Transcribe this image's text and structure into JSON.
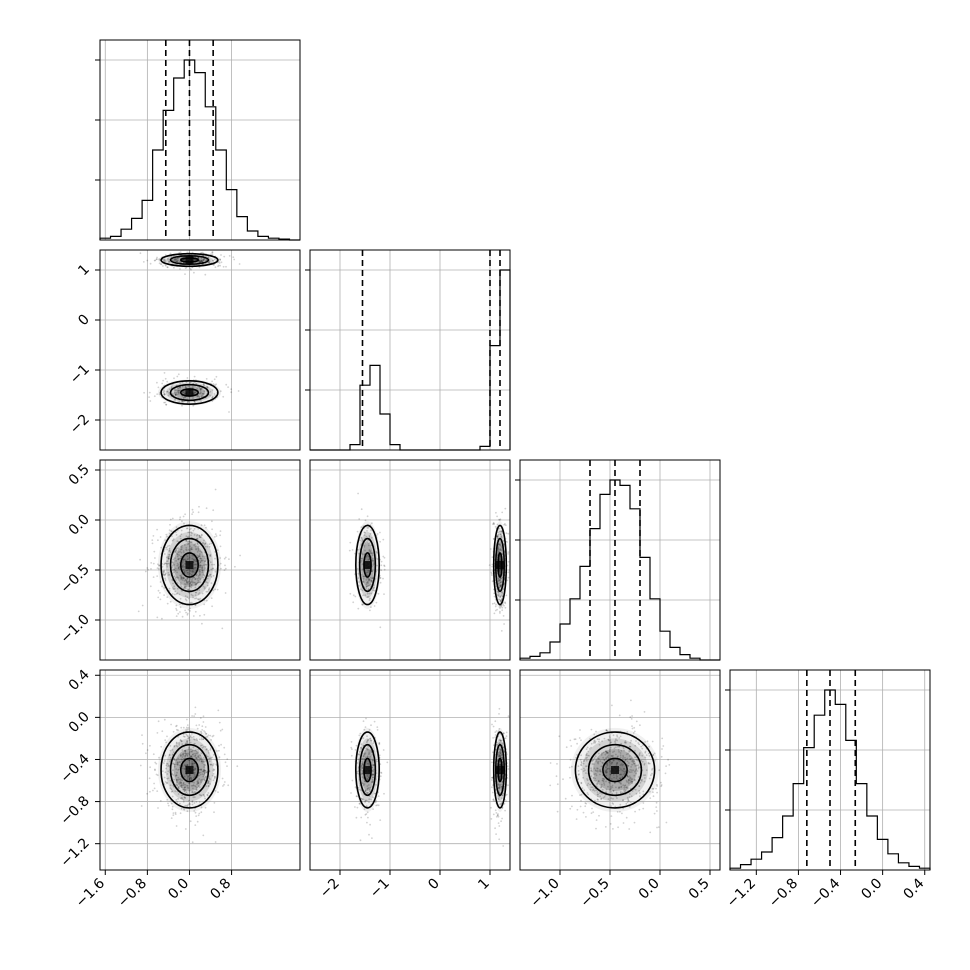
{
  "chart_data": {
    "type": "corner",
    "grid": true,
    "parameters": [
      {
        "index": 0,
        "range": [
          -1.7,
          2.1
        ],
        "ticks": [
          -1.6,
          -0.8,
          0.0,
          0.8
        ],
        "tick_labels": [
          "−1.6",
          "−0.8",
          "0.0",
          "0.8"
        ],
        "quantiles": [
          -0.45,
          0.0,
          0.45
        ],
        "mean": 0.0,
        "sd": 0.3
      },
      {
        "index": 1,
        "range": [
          -2.6,
          1.4
        ],
        "ticks": [
          -2,
          -1,
          0,
          1
        ],
        "tick_labels": [
          "−2",
          "−1",
          "0",
          "1"
        ],
        "quantiles": [
          -1.55,
          1.0,
          1.2
        ],
        "modes": [
          {
            "mean": -1.45,
            "sd": 0.13,
            "weight": 0.4
          },
          {
            "mean": 1.2,
            "sd": 0.07,
            "weight": 0.6
          }
        ]
      },
      {
        "index": 2,
        "range": [
          -1.4,
          0.6
        ],
        "ticks": [
          -1.0,
          -0.5,
          0.0,
          0.5
        ],
        "tick_labels": [
          "−1.0",
          "−0.5",
          "0.0",
          "0.5"
        ],
        "quantiles": [
          -0.7,
          -0.45,
          -0.2
        ],
        "mean": -0.45,
        "sd": 0.22
      },
      {
        "index": 3,
        "range": [
          -1.45,
          0.45
        ],
        "ticks": [
          -1.2,
          -0.8,
          -0.4,
          0.0,
          0.4
        ],
        "tick_labels": [
          "−1.2",
          "−0.8",
          "−0.4",
          "0.0",
          "0.4"
        ],
        "quantiles": [
          -0.72,
          -0.5,
          -0.26
        ],
        "mean": -0.5,
        "sd": 0.2
      }
    ],
    "marginal_histograms": [
      {
        "param": 0,
        "bin_edges": [
          -1.7,
          -1.5,
          -1.3,
          -1.1,
          -0.9,
          -0.7,
          -0.5,
          -0.3,
          -0.1,
          0.1,
          0.3,
          0.5,
          0.7,
          0.9,
          1.1,
          1.3,
          1.5,
          1.7,
          1.9,
          2.1
        ],
        "counts": [
          0.01,
          0.02,
          0.06,
          0.12,
          0.22,
          0.5,
          0.72,
          0.9,
          1.0,
          0.93,
          0.74,
          0.5,
          0.28,
          0.13,
          0.05,
          0.02,
          0.01,
          0.005,
          0.0
        ]
      },
      {
        "param": 1,
        "bin_edges": [
          -2.6,
          -2.4,
          -2.2,
          -2.0,
          -1.8,
          -1.6,
          -1.4,
          -1.2,
          -1.0,
          -0.8,
          -0.6,
          -0.4,
          -0.2,
          0.0,
          0.2,
          0.4,
          0.6,
          0.8,
          1.0,
          1.2,
          1.4
        ],
        "counts": [
          0.0,
          0.0,
          0.0,
          0.0,
          0.03,
          0.36,
          0.47,
          0.2,
          0.03,
          0.0,
          0.0,
          0.0,
          0.0,
          0.0,
          0.0,
          0.0,
          0.0,
          0.02,
          0.58,
          1.0
        ]
      },
      {
        "param": 2,
        "bin_edges": [
          -1.4,
          -1.3,
          -1.2,
          -1.1,
          -1.0,
          -0.9,
          -0.8,
          -0.7,
          -0.6,
          -0.5,
          -0.4,
          -0.3,
          -0.2,
          -0.1,
          0.0,
          0.1,
          0.2,
          0.3,
          0.4,
          0.5,
          0.6
        ],
        "counts": [
          0.01,
          0.02,
          0.04,
          0.1,
          0.2,
          0.34,
          0.52,
          0.73,
          0.92,
          1.0,
          0.97,
          0.84,
          0.57,
          0.34,
          0.16,
          0.07,
          0.03,
          0.01,
          0.0,
          0.0
        ]
      },
      {
        "param": 3,
        "bin_edges": [
          -1.45,
          -1.35,
          -1.25,
          -1.15,
          -1.05,
          -0.95,
          -0.85,
          -0.75,
          -0.65,
          -0.55,
          -0.45,
          -0.35,
          -0.25,
          -0.15,
          -0.05,
          0.05,
          0.15,
          0.25,
          0.35,
          0.45
        ],
        "counts": [
          0.01,
          0.03,
          0.06,
          0.1,
          0.18,
          0.3,
          0.48,
          0.68,
          0.86,
          1.0,
          0.92,
          0.72,
          0.48,
          0.3,
          0.17,
          0.09,
          0.04,
          0.02,
          0.01
        ]
      }
    ],
    "pairs": [
      {
        "x_param": 0,
        "y_param": 1
      },
      {
        "x_param": 0,
        "y_param": 2
      },
      {
        "x_param": 1,
        "y_param": 2
      },
      {
        "x_param": 0,
        "y_param": 3
      },
      {
        "x_param": 1,
        "y_param": 3
      },
      {
        "x_param": 2,
        "y_param": 3
      }
    ]
  }
}
